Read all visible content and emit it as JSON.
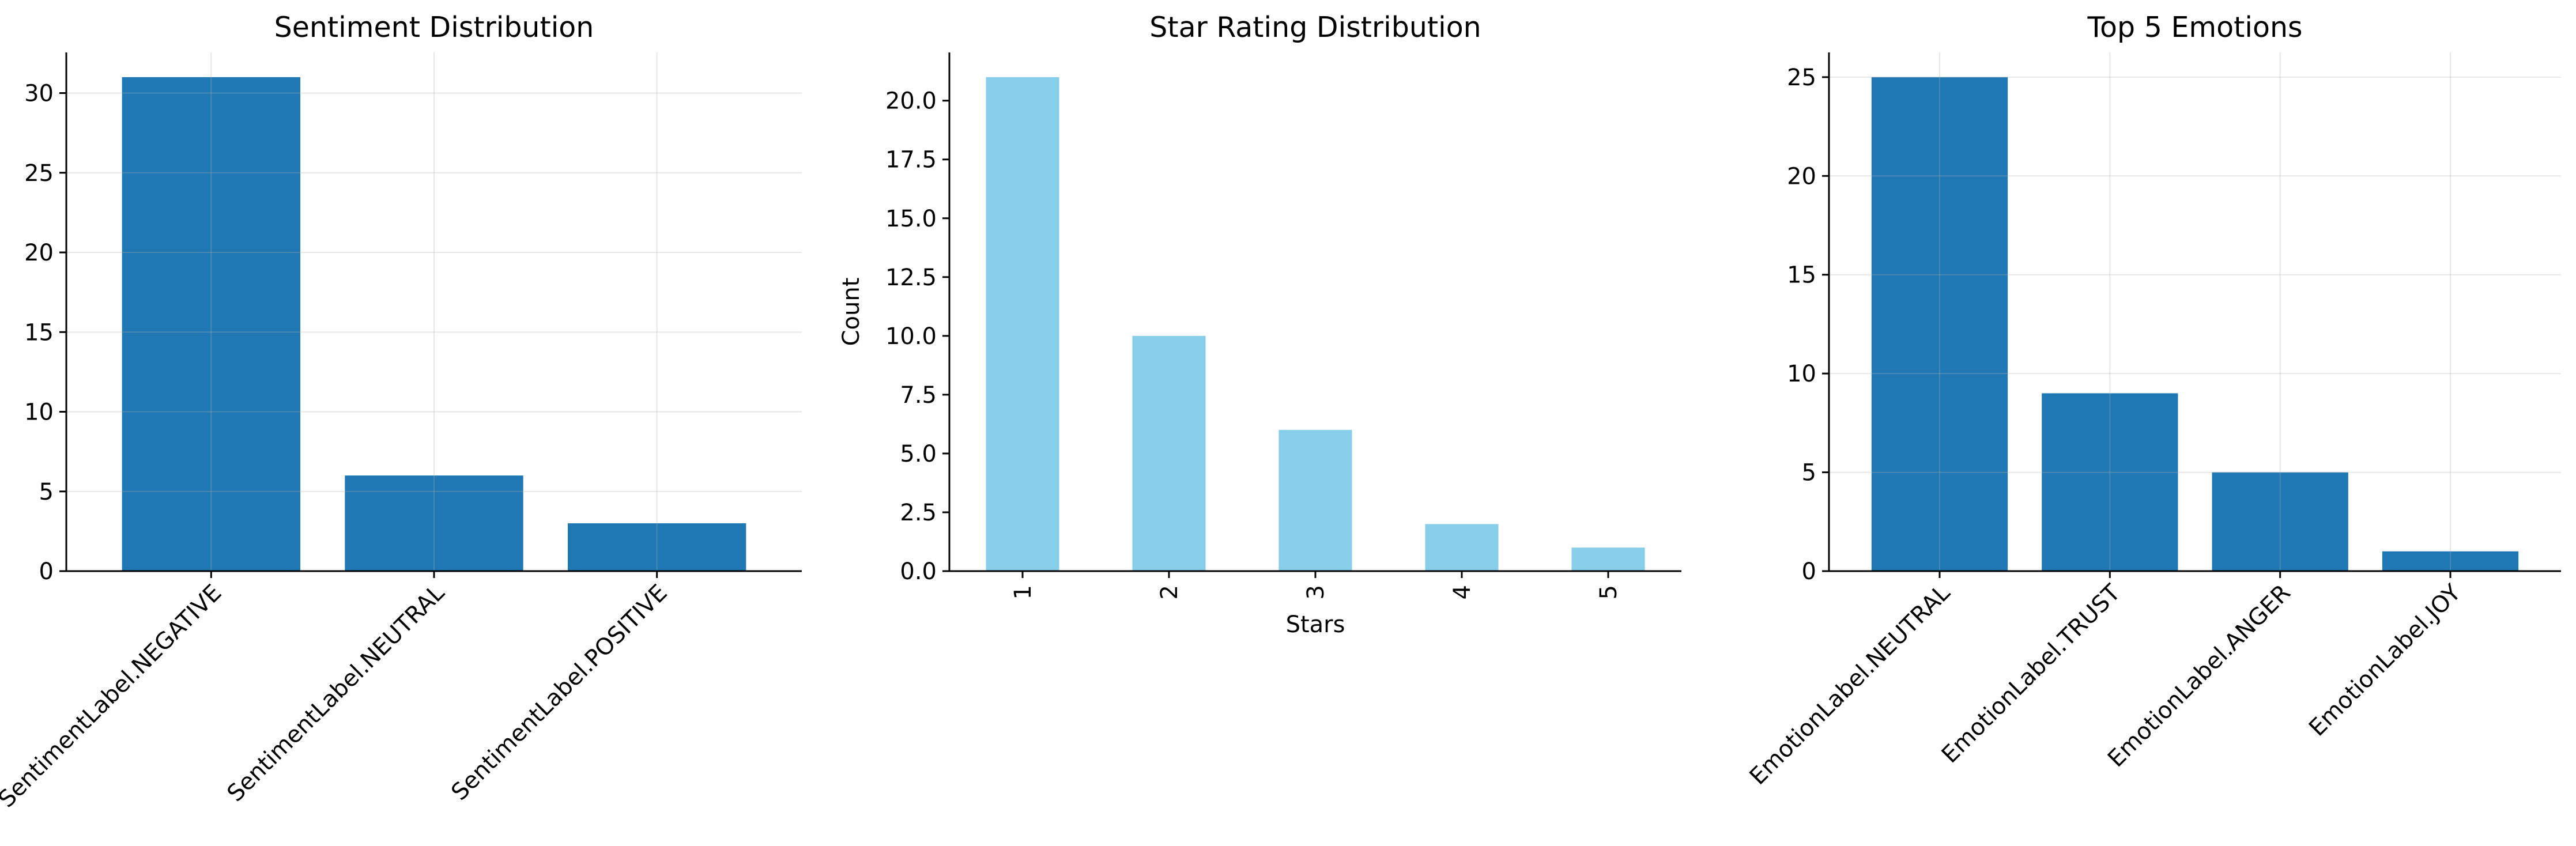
{
  "chart_data": [
    {
      "type": "bar",
      "title": "Sentiment Distribution",
      "xlabel": "",
      "ylabel": "",
      "categories": [
        "SentimentLabel.NEGATIVE",
        "SentimentLabel.NEUTRAL",
        "SentimentLabel.POSITIVE"
      ],
      "values": [
        31,
        6,
        3
      ],
      "ylim": [
        0,
        32.55
      ],
      "yticks": [
        "0",
        "5",
        "10",
        "15",
        "20",
        "25",
        "30"
      ],
      "grid": true,
      "color": "#1f77b4"
    },
    {
      "type": "bar",
      "title": "Star Rating Distribution",
      "xlabel": "Stars",
      "ylabel": "Count",
      "categories": [
        "1",
        "2",
        "3",
        "4",
        "5"
      ],
      "values": [
        21,
        10,
        6,
        2,
        1
      ],
      "ylim": [
        0,
        22.05
      ],
      "yticks": [
        "0.0",
        "2.5",
        "5.0",
        "7.5",
        "10.0",
        "12.5",
        "15.0",
        "17.5",
        "20.0"
      ],
      "grid": false,
      "color": "#87ceeb"
    },
    {
      "type": "bar",
      "title": "Top 5 Emotions",
      "xlabel": "",
      "ylabel": "",
      "categories": [
        "EmotionLabel.NEUTRAL",
        "EmotionLabel.TRUST",
        "EmotionLabel.ANGER",
        "EmotionLabel.JOY"
      ],
      "values": [
        25,
        9,
        5,
        1
      ],
      "ylim": [
        0,
        26.25
      ],
      "yticks": [
        "0",
        "5",
        "10",
        "15",
        "20",
        "25"
      ],
      "grid": true,
      "color": "#1f77b4"
    }
  ]
}
